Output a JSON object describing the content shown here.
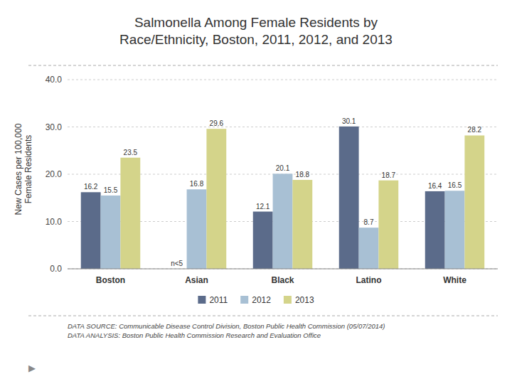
{
  "chart_data": {
    "type": "bar",
    "title": "Salmonella Among Female Residents by\nRace/Ethnicity, Boston, 2011, 2012, and 2013",
    "y_label": "New Cases per 100,000\nFemale Residents",
    "categories": [
      "Boston",
      "Asian",
      "Black",
      "Latino",
      "White"
    ],
    "series": [
      {
        "name": "2011",
        "color": "#5b6b8a",
        "values": [
          16.2,
          0,
          12.1,
          30.1,
          16.4
        ],
        "value_labels": [
          "16.2",
          "n<5",
          "12.1",
          "30.1",
          "16.4"
        ]
      },
      {
        "name": "2012",
        "color": "#a8c0d4",
        "values": [
          15.5,
          16.8,
          20.1,
          8.7,
          16.5
        ]
      },
      {
        "name": "2013",
        "color": "#d4d48a",
        "values": [
          23.5,
          29.6,
          18.8,
          18.7,
          28.2
        ]
      }
    ],
    "ylim": [
      0,
      40
    ],
    "yticks": [
      {
        "value": 0,
        "label": "0.0"
      },
      {
        "value": 10,
        "label": "10.0"
      },
      {
        "value": 20,
        "label": "20.0"
      },
      {
        "value": 30,
        "label": "30.0"
      },
      {
        "value": 40,
        "label": "40.0"
      }
    ],
    "grid": true,
    "legend": "bottom",
    "data_labels": true,
    "annotations": [
      "DATA SOURCE: Communicable Disease Control Division, Boston Public Health Commission (05/07/2014)\nDATA ANALYSIS: Boston Public Health Commission Research and Evaluation Office",
      "▶"
    ]
  }
}
